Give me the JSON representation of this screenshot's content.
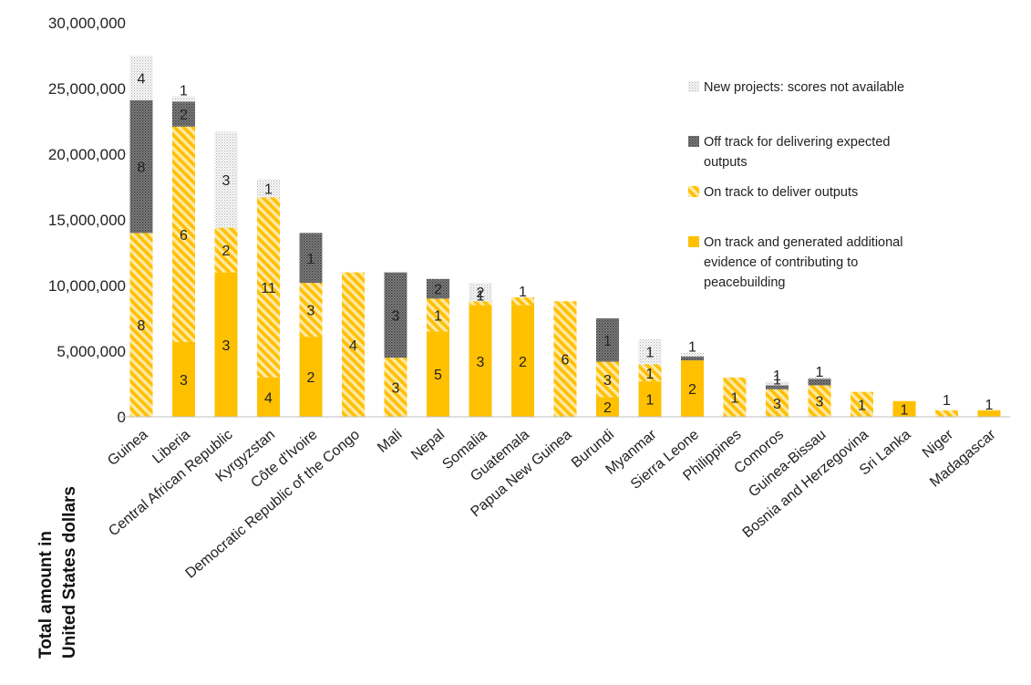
{
  "chart_data": {
    "type": "bar",
    "stacked": true,
    "ylabel_lines": [
      "Total amount in",
      "United States dollars"
    ],
    "ylim": [
      0,
      30000000
    ],
    "yticks": [
      0,
      5000000,
      10000000,
      15000000,
      20000000,
      25000000,
      30000000
    ],
    "ytick_labels": [
      "0",
      "5,000,000",
      "10,000,000",
      "15,000,000",
      "20,000,000",
      "25,000,000",
      "30,000,000"
    ],
    "categories": [
      "Guinea",
      "Liberia",
      "Central African Republic",
      "Kyrgyzstan",
      "Côte d'Ivoire",
      "Democratic Republic of the Congo",
      "Mali",
      "Nepal",
      "Somalia",
      "Guatemala",
      "Papua New Guinea",
      "Burundi",
      "Myanmar",
      "Sierra Leone",
      "Philippines",
      "Comoros",
      "Guinea-Bissau",
      "Bosnia and Herzegovina",
      "Sri Lanka",
      "Niger",
      "Madagascar"
    ],
    "series": [
      {
        "name": "On track and generated additional evidence of contributing to peacebuilding",
        "pattern": "solid",
        "color": "#FFC000",
        "values": [
          0,
          5700000,
          11000000,
          3000000,
          6100000,
          0,
          0,
          6500000,
          8500000,
          8500000,
          0,
          1500000,
          2700000,
          4300000,
          0,
          0,
          0,
          0,
          1200000,
          0,
          500000
        ],
        "counts": [
          "",
          "3",
          "3",
          "4",
          "2",
          "",
          "",
          "5",
          "3",
          "2",
          "",
          "2",
          "1",
          "2",
          "",
          "",
          "",
          "",
          "1",
          "",
          "1"
        ]
      },
      {
        "name": "On track to deliver outputs",
        "pattern": "hatch",
        "color": "#FFC000",
        "values": [
          14000000,
          16400000,
          3400000,
          13700000,
          4100000,
          11000000,
          4500000,
          2500000,
          300000,
          600000,
          8800000,
          2700000,
          1300000,
          0,
          3000000,
          2100000,
          2400000,
          1900000,
          0,
          500000,
          0
        ],
        "counts": [
          "8",
          "6",
          "2",
          "11",
          "3",
          "4",
          "3",
          "1",
          "1",
          "1",
          "6",
          "3",
          "1",
          "",
          "1",
          "3",
          "3",
          "1",
          "",
          "",
          ""
        ]
      },
      {
        "name": "Off track for delivering expected outputs",
        "pattern": "dense-dots",
        "color": "#555555",
        "values": [
          10100000,
          1900000,
          0,
          0,
          3800000,
          0,
          6500000,
          1500000,
          0,
          0,
          0,
          3300000,
          0,
          300000,
          0,
          300000,
          500000,
          0,
          0,
          0,
          0
        ],
        "counts": [
          "8",
          "2",
          "",
          "",
          "1",
          "",
          "3",
          "2",
          "",
          "",
          "",
          "1",
          "",
          "",
          "",
          "1",
          "",
          "",
          "",
          "",
          ""
        ]
      },
      {
        "name": "New projects: scores not available",
        "pattern": "sparse-dots",
        "color": "#999999",
        "values": [
          3400000,
          400000,
          7300000,
          1400000,
          0,
          0,
          0,
          0,
          1400000,
          0,
          0,
          0,
          1900000,
          300000,
          0,
          300000,
          100000,
          0,
          0,
          0,
          0
        ],
        "counts": [
          "4",
          "1",
          "3",
          "1",
          "",
          "",
          "",
          "",
          "2",
          "",
          "",
          "",
          "1",
          "1",
          "",
          "1",
          "1",
          "",
          "",
          "1",
          ""
        ]
      }
    ],
    "legend_position": "right",
    "grid": false
  }
}
